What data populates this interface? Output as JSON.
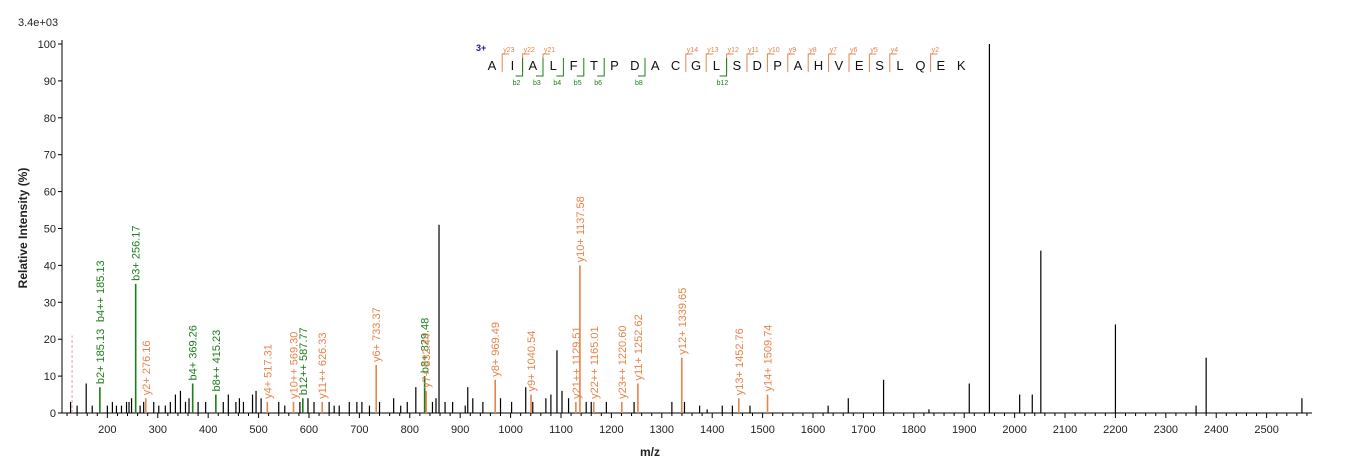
{
  "chart_data": {
    "type": "bar",
    "title": "",
    "scale_label": "3.4e+03",
    "xlabel": "m/z",
    "ylabel": "Relative   Intensity (%)",
    "xlim": [
      110,
      2590
    ],
    "ylim": [
      0,
      100
    ],
    "x_ticks": [
      200,
      300,
      400,
      500,
      600,
      700,
      800,
      900,
      1000,
      1100,
      1200,
      1300,
      1400,
      1500,
      1600,
      1700,
      1800,
      1900,
      2000,
      2100,
      2200,
      2300,
      2400,
      2500
    ],
    "y_ticks": [
      0,
      10,
      20,
      30,
      40,
      50,
      60,
      70,
      80,
      90,
      100
    ],
    "colors": {
      "b": "#1a7f1a",
      "y": "#e8834a",
      "unassigned": "#000000",
      "charge": "#1a1a9a"
    },
    "annotated_peaks": [
      {
        "label": "b2+ 185.13",
        "mz": 185.13,
        "intensity": 7,
        "ion": "b"
      },
      {
        "label": "b4++ 185.13",
        "mz": 185.13,
        "intensity": 7,
        "ion": "b"
      },
      {
        "label": "b3+ 256.17",
        "mz": 256.17,
        "intensity": 35,
        "ion": "b"
      },
      {
        "label": "y2+ 276.16",
        "mz": 276.16,
        "intensity": 4,
        "ion": "y"
      },
      {
        "label": "b4+ 369.26",
        "mz": 369.26,
        "intensity": 8,
        "ion": "b"
      },
      {
        "label": "b8++ 415.23",
        "mz": 415.23,
        "intensity": 5,
        "ion": "b"
      },
      {
        "label": "y4+ 517.31",
        "mz": 517.31,
        "intensity": 3,
        "ion": "y"
      },
      {
        "label": "y6+ 733.37",
        "mz": 733.37,
        "intensity": 13,
        "ion": "y"
      },
      {
        "label": "b8+ 829.48",
        "mz": 829.48,
        "intensity": 10,
        "ion": "b"
      },
      {
        "label": "y7+ 832.44",
        "mz": 832.44,
        "intensity": 6,
        "ion": "y"
      },
      {
        "label": "y8+ 969.49",
        "mz": 969.49,
        "intensity": 9,
        "ion": "y"
      },
      {
        "label": "y9+ 1040.54",
        "mz": 1040.54,
        "intensity": 5,
        "ion": "y"
      },
      {
        "label": "y21++ 1129.51",
        "mz": 1129.51,
        "intensity": 3,
        "ion": "y"
      },
      {
        "label": "y10+ 1137.58",
        "mz": 1137.58,
        "intensity": 40,
        "ion": "y"
      },
      {
        "label": "y22++ 1165.01",
        "mz": 1165.01,
        "intensity": 3,
        "ion": "y"
      },
      {
        "label": "y23++ 1220.60",
        "mz": 1220.6,
        "intensity": 3,
        "ion": "y"
      },
      {
        "label": "y11+ 1252.62",
        "mz": 1252.62,
        "intensity": 8,
        "ion": "y"
      },
      {
        "label": "y12+ 1339.65",
        "mz": 1339.65,
        "intensity": 15,
        "ion": "y"
      },
      {
        "label": "y13+ 1452.76",
        "mz": 1452.76,
        "intensity": 4,
        "ion": "y"
      },
      {
        "label": "y14+ 1509.74",
        "mz": 1509.74,
        "intensity": 5,
        "ion": "y"
      },
      {
        "label": "y11++ 626.33",
        "mz": 626.33,
        "intensity": 3,
        "ion": "y"
      },
      {
        "label": "y10++ 569.30",
        "mz": 569.3,
        "intensity": 3,
        "ion": "y"
      },
      {
        "label": "b12++ 587.77",
        "mz": 587.77,
        "intensity": 4,
        "ion": "b"
      }
    ],
    "unassigned_peaks": [
      [
        127,
        3
      ],
      [
        140,
        2
      ],
      [
        158,
        8
      ],
      [
        170,
        2
      ],
      [
        200,
        2
      ],
      [
        210,
        3
      ],
      [
        218,
        2
      ],
      [
        228,
        2
      ],
      [
        238,
        3
      ],
      [
        243,
        3
      ],
      [
        248,
        4
      ],
      [
        265,
        2
      ],
      [
        272,
        3
      ],
      [
        292,
        3
      ],
      [
        302,
        2
      ],
      [
        315,
        2
      ],
      [
        325,
        3
      ],
      [
        335,
        5
      ],
      [
        345,
        6
      ],
      [
        355,
        3
      ],
      [
        362,
        4
      ],
      [
        380,
        3
      ],
      [
        395,
        3
      ],
      [
        430,
        3
      ],
      [
        440,
        5
      ],
      [
        455,
        3
      ],
      [
        462,
        4
      ],
      [
        470,
        3
      ],
      [
        488,
        5
      ],
      [
        495,
        6
      ],
      [
        505,
        4
      ],
      [
        540,
        3
      ],
      [
        552,
        2
      ],
      [
        582,
        3
      ],
      [
        598,
        4
      ],
      [
        610,
        3
      ],
      [
        640,
        3
      ],
      [
        650,
        2
      ],
      [
        660,
        2
      ],
      [
        680,
        3
      ],
      [
        695,
        3
      ],
      [
        705,
        3
      ],
      [
        720,
        2
      ],
      [
        740,
        3
      ],
      [
        768,
        4
      ],
      [
        782,
        2
      ],
      [
        795,
        3
      ],
      [
        812,
        7
      ],
      [
        845,
        3
      ],
      [
        852,
        4
      ],
      [
        858,
        51
      ],
      [
        870,
        3
      ],
      [
        885,
        3
      ],
      [
        910,
        2
      ],
      [
        915,
        7
      ],
      [
        925,
        4
      ],
      [
        945,
        3
      ],
      [
        980,
        4
      ],
      [
        1002,
        3
      ],
      [
        1030,
        7
      ],
      [
        1044,
        3
      ],
      [
        1070,
        4
      ],
      [
        1080,
        5
      ],
      [
        1092,
        17
      ],
      [
        1102,
        6
      ],
      [
        1115,
        4
      ],
      [
        1150,
        3
      ],
      [
        1160,
        3
      ],
      [
        1190,
        3
      ],
      [
        1245,
        3
      ],
      [
        1320,
        3
      ],
      [
        1345,
        3
      ],
      [
        1375,
        2
      ],
      [
        1390,
        1
      ],
      [
        1420,
        2
      ],
      [
        1440,
        2
      ],
      [
        1475,
        2
      ],
      [
        1630,
        2
      ],
      [
        1670,
        4
      ],
      [
        1740,
        9
      ],
      [
        1830,
        1
      ],
      [
        1910,
        8
      ],
      [
        1950,
        100
      ],
      [
        2010,
        5
      ],
      [
        2035,
        5
      ],
      [
        2052,
        44
      ],
      [
        2200,
        24
      ],
      [
        2360,
        2
      ],
      [
        2380,
        15
      ],
      [
        2570,
        4
      ]
    ],
    "sequence": {
      "residues": [
        "A",
        "I",
        "A",
        "L",
        "F",
        "T",
        "P",
        "D",
        "A",
        "C",
        "G",
        "L",
        "S",
        "D",
        "P",
        "A",
        "H",
        "V",
        "E",
        "S",
        "L",
        "Q",
        "E",
        "K"
      ],
      "precursor_charge": "3+",
      "y_ions": [
        {
          "label": "y23",
          "between": 1
        },
        {
          "label": "y22",
          "between": 2
        },
        {
          "label": "y21",
          "between": 3
        },
        {
          "label": "y14",
          "between": 10
        },
        {
          "label": "y13",
          "between": 11
        },
        {
          "label": "y12",
          "between": 12
        },
        {
          "label": "y11",
          "between": 13
        },
        {
          "label": "y10",
          "between": 14
        },
        {
          "label": "y9",
          "between": 15
        },
        {
          "label": "y8",
          "between": 16
        },
        {
          "label": "y7",
          "between": 17
        },
        {
          "label": "y6",
          "between": 18
        },
        {
          "label": "y5",
          "between": 19
        },
        {
          "label": "y4",
          "between": 20
        },
        {
          "label": "y2",
          "between": 22
        }
      ],
      "b_ions": [
        {
          "label": "b2",
          "between": 2
        },
        {
          "label": "b3",
          "between": 3
        },
        {
          "label": "b4",
          "between": 4
        },
        {
          "label": "b5",
          "between": 5
        },
        {
          "label": "b6",
          "between": 6
        },
        {
          "label": "b8",
          "between": 8
        },
        {
          "label": "b12",
          "between": 12
        }
      ]
    }
  }
}
